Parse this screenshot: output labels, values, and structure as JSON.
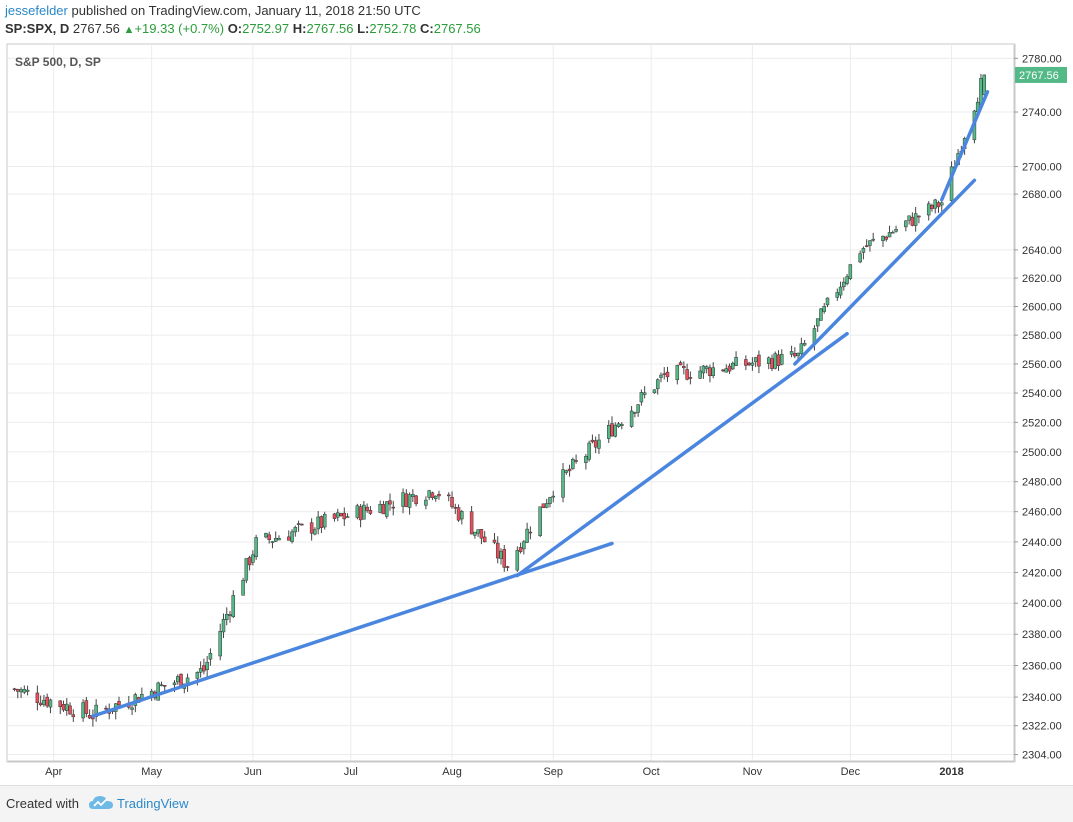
{
  "header": {
    "author": "jessefelder",
    "published_text": "published on TradingView.com, January 11, 2018 21:50 UTC",
    "symbol": "SP:SPX, D",
    "last": "2767.56",
    "change": "+19.33 (+0.7%)",
    "open_label": "O:",
    "open": "2752.97",
    "high_label": "H:",
    "high": "2767.56",
    "low_label": "L:",
    "low": "2752.78",
    "close_label": "C:",
    "close": "2767.56"
  },
  "footer": {
    "created_with": "Created with",
    "brand": "TradingView"
  },
  "colors": {
    "up": "#53b987",
    "down": "#eb4d5c",
    "trend": "#4a86e0",
    "price_tag": "#53b987"
  },
  "chart_data": {
    "type": "candlestick",
    "title": "S&P 500, D, SP",
    "ylim": [
      2300,
      2790
    ],
    "y_ticks": [
      2304,
      2322,
      2340,
      2360,
      2380,
      2400,
      2420,
      2440,
      2460,
      2480,
      2500,
      2520,
      2540,
      2560,
      2580,
      2600,
      2620,
      2640,
      2680,
      2700,
      2740,
      2780
    ],
    "x_labels": [
      {
        "label": "Apr",
        "day": 14
      },
      {
        "label": "May",
        "day": 44
      },
      {
        "label": "Jun",
        "day": 76
      },
      {
        "label": "Jul",
        "day": 106
      },
      {
        "label": "Aug",
        "day": 137
      },
      {
        "label": "Sep",
        "day": 168
      },
      {
        "label": "Oct",
        "day": 198
      },
      {
        "label": "Nov",
        "day": 229
      },
      {
        "label": "Dec",
        "day": 259
      },
      {
        "label": "2018",
        "day": 290,
        "bold": true
      }
    ],
    "last_price": "2767.56",
    "grid": true,
    "key_points": [
      {
        "date": "2017-04-13",
        "close": 2329
      },
      {
        "date": "2017-05-17",
        "close": 2357
      },
      {
        "date": "2017-06-02",
        "close": 2439
      },
      {
        "date": "2017-07-27",
        "close": 2475
      },
      {
        "date": "2017-08-18",
        "close": 2425
      },
      {
        "date": "2017-09-01",
        "close": 2476
      },
      {
        "date": "2017-10-05",
        "close": 2552
      },
      {
        "date": "2017-11-15",
        "close": 2565
      },
      {
        "date": "2017-12-04",
        "close": 2640
      },
      {
        "date": "2017-12-29",
        "close": 2674
      },
      {
        "date": "2018-01-11",
        "close": 2767.56
      }
    ],
    "trendlines": [
      {
        "from": {
          "date": "2017-04-13",
          "value": 2328
        },
        "to": {
          "date": "2017-09-19",
          "value": 2439
        }
      },
      {
        "from": {
          "date": "2017-08-21",
          "value": 2418
        },
        "to": {
          "date": "2017-11-30",
          "value": 2581
        }
      },
      {
        "from": {
          "date": "2017-11-14",
          "value": 2560
        },
        "to": {
          "date": "2018-01-08",
          "value": 2690
        }
      },
      {
        "from": {
          "date": "2017-12-29",
          "value": 2676
        },
        "to": {
          "date": "2018-01-12",
          "value": 2755
        }
      }
    ]
  }
}
